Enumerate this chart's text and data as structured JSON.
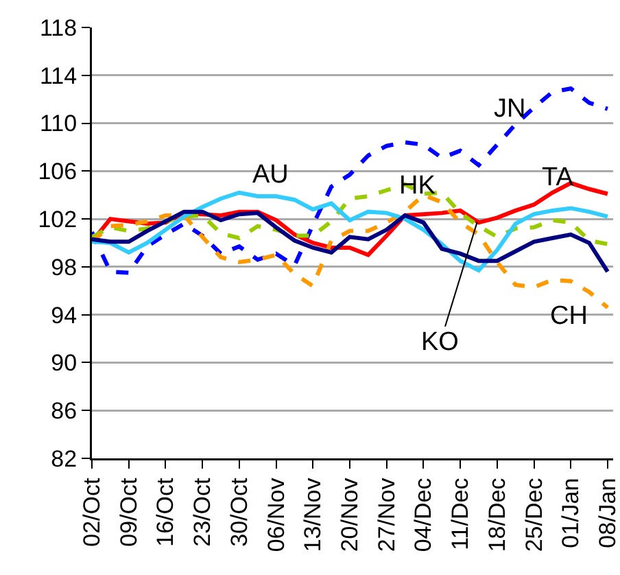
{
  "chart_data": {
    "type": "line",
    "categories": [
      "02/Oct",
      null,
      "09/Oct",
      null,
      "16/Oct",
      null,
      "23/Oct",
      null,
      "30/Oct",
      null,
      "06/Nov",
      null,
      "13/Nov",
      null,
      "20/Nov",
      null,
      "27/Nov",
      null,
      "04/Dec",
      null,
      "11/Dec",
      null,
      "18/Dec",
      null,
      "25/Dec",
      null,
      "01/Jan",
      null,
      "08/Jan"
    ],
    "series": [
      {
        "name": "JN",
        "color": "#0000ff",
        "line_style": "dashed",
        "values": [
          100.9,
          97.6,
          97.5,
          99.7,
          100.7,
          101.6,
          100.6,
          99.1,
          99.7,
          98.6,
          99.1,
          98.1,
          101.5,
          104.7,
          105.7,
          107.3,
          108.1,
          108.4,
          108.2,
          107.1,
          107.7,
          106.5,
          108.2,
          109.9,
          111.3,
          112.6,
          112.9,
          111.7,
          111.2
        ]
      },
      {
        "name": "TA",
        "color": "#ff0000",
        "line_style": "solid",
        "values": [
          100.1,
          102,
          101.8,
          101.6,
          101.7,
          102.5,
          102.4,
          102.3,
          102.6,
          102.6,
          101.9,
          100.7,
          100,
          99.6,
          99.6,
          99,
          100.6,
          102.3,
          102.4,
          102.5,
          102.7,
          101.7,
          102.1,
          102.7,
          103.2,
          104.2,
          105,
          104.5,
          104.1
        ]
      },
      {
        "name": "HK",
        "color": "#99cc00",
        "line_style": "dashed",
        "values": [
          100.5,
          101.3,
          101,
          101.2,
          101.8,
          102.2,
          102.3,
          100.8,
          100.4,
          101.4,
          101.1,
          100.6,
          100.6,
          101.8,
          103.7,
          103.9,
          104.4,
          104.9,
          104.1,
          104.2,
          102.5,
          101.4,
          100.5,
          101.2,
          101.3,
          101.9,
          101.7,
          100.2,
          99.9
        ]
      },
      {
        "name": "CH",
        "color": "#ff9900",
        "line_style": "dashed",
        "values": [
          100.1,
          101.4,
          101.5,
          101.8,
          102.3,
          102.3,
          100.5,
          98.8,
          98.4,
          98.6,
          99,
          97.4,
          96.4,
          100.2,
          101,
          101,
          101.7,
          102.6,
          104,
          103.4,
          101.7,
          100.7,
          98.4,
          96.5,
          96.3,
          96.9,
          96.8,
          95.9,
          94.6
        ]
      },
      {
        "name": "AU",
        "color": "#33ccff",
        "line_style": "solid",
        "values": [
          100.1,
          100,
          99.2,
          100,
          101.1,
          102.2,
          103,
          103.7,
          104.2,
          103.9,
          103.9,
          103.6,
          102.8,
          103.3,
          101.9,
          102.6,
          102.5,
          102,
          101.1,
          99.9,
          98.5,
          97.7,
          99.4,
          101.6,
          102.4,
          102.7,
          102.9,
          102.6,
          102.2
        ]
      },
      {
        "name": "KO",
        "color": "#000080",
        "line_style": "solid",
        "values": [
          100.3,
          100.1,
          100.1,
          101,
          101.8,
          102.6,
          102.6,
          101.9,
          102.4,
          102.5,
          101.3,
          100.2,
          99.6,
          99.2,
          100.5,
          100.3,
          101.1,
          102.3,
          101.7,
          99.5,
          99.1,
          98.5,
          98.5,
          99.3,
          100.1,
          100.4,
          100.7,
          100,
          97.6
        ]
      }
    ],
    "ylim": [
      82,
      118
    ],
    "yticks": [
      82,
      86,
      90,
      94,
      98,
      102,
      106,
      110,
      114,
      118
    ],
    "grid": "y",
    "legend": false,
    "marker": "none"
  }
}
